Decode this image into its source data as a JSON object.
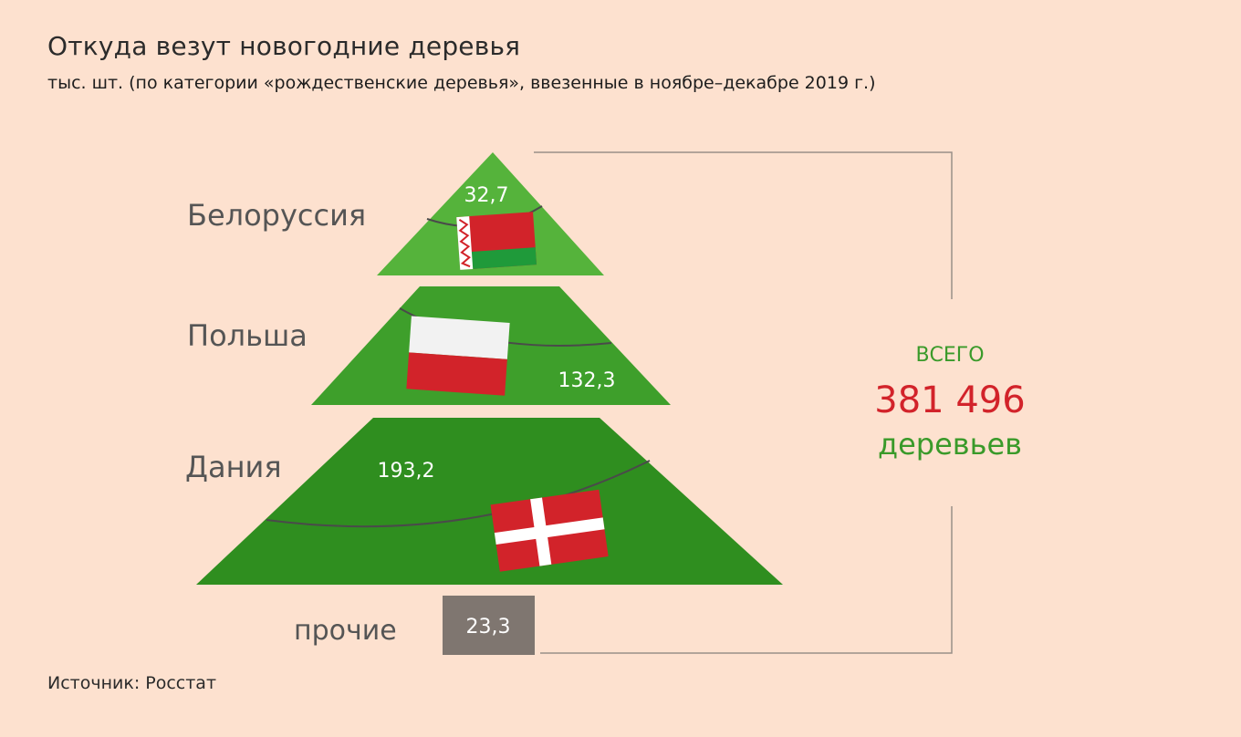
{
  "header": {
    "title": "Откуда везут новогодние деревья",
    "subtitle": "тыс. шт. (по категории «рождественские деревья», ввезенные в ноябре–декабре 2019 г.)"
  },
  "source": "Источник: Росстат",
  "total": {
    "word": "ВСЕГО",
    "number": "381 496",
    "unit": "деревьев"
  },
  "chart_data": {
    "type": "bar",
    "title": "Откуда везут новогодние деревья",
    "subtitle": "тыс. шт. (по категории «рождественские деревья», ввезенные в ноябре–декабре 2019 г.)",
    "categories": [
      "Белоруссия",
      "Польша",
      "Дания",
      "прочие"
    ],
    "values": [
      32.7,
      132.3,
      193.2,
      23.3
    ],
    "value_labels": [
      "32,7",
      "132,3",
      "193,2",
      "23,3"
    ],
    "colors": [
      "#55b33b",
      "#3e9f2b",
      "#2f8e1f",
      "#7f7670"
    ],
    "flags": [
      "belarus-flag",
      "poland-flag",
      "denmark-flag",
      ""
    ]
  }
}
